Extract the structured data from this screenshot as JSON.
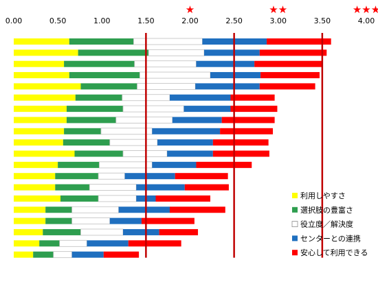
{
  "chart_data": {
    "type": "bar",
    "orientation": "horizontal",
    "stacked": true,
    "xlim": [
      0,
      4
    ],
    "x_ticks": [
      "0.00",
      "0.50",
      "1.00",
      "1.50",
      "2.00",
      "2.50",
      "3.00",
      "3.50",
      "4.00"
    ],
    "rating_stars": [
      {
        "x": 2,
        "label": "★"
      },
      {
        "x": 3,
        "label": "★★"
      },
      {
        "x": 4,
        "label": "★★★"
      }
    ],
    "reference_lines": [
      1.5,
      2.5,
      3.5
    ],
    "legend_position": "bottom-right",
    "series": [
      {
        "name": "利用しやすさ",
        "color": "#FFFF00",
        "values": [
          0.63,
          0.73,
          0.57,
          0.63,
          0.76,
          0.7,
          0.6,
          0.6,
          0.57,
          0.56,
          0.69,
          0.5,
          0.47,
          0.47,
          0.53,
          0.36,
          0.36,
          0.33,
          0.29,
          0.22
        ]
      },
      {
        "name": "選択肢の豊富さ",
        "color": "#2E9E4F",
        "values": [
          0.73,
          0.8,
          0.8,
          0.8,
          0.64,
          0.53,
          0.64,
          0.56,
          0.42,
          0.53,
          0.55,
          0.47,
          0.49,
          0.39,
          0.43,
          0.3,
          0.3,
          0.43,
          0.23,
          0.23
        ]
      },
      {
        "name": "役立度／解決度",
        "color": "#FFFFFF",
        "values": [
          0.78,
          0.63,
          0.7,
          0.8,
          0.66,
          0.54,
          0.69,
          0.64,
          0.58,
          0.54,
          0.5,
          0.6,
          0.3,
          0.53,
          0.43,
          0.53,
          0.43,
          0.48,
          0.31,
          0.21
        ]
      },
      {
        "name": "センターとの連携",
        "color": "#1F6FBF",
        "values": [
          0.73,
          0.63,
          0.66,
          0.57,
          0.73,
          0.69,
          0.53,
          0.56,
          0.77,
          0.63,
          0.52,
          0.5,
          0.57,
          0.55,
          0.22,
          0.58,
          0.36,
          0.41,
          0.47,
          0.36
        ]
      },
      {
        "name": "安心して利用できる",
        "color": "#FF0000",
        "values": [
          0.73,
          0.76,
          0.77,
          0.67,
          0.63,
          0.5,
          0.53,
          0.6,
          0.6,
          0.63,
          0.64,
          0.63,
          0.6,
          0.5,
          0.62,
          0.63,
          0.6,
          0.44,
          0.6,
          0.4
        ]
      }
    ]
  }
}
